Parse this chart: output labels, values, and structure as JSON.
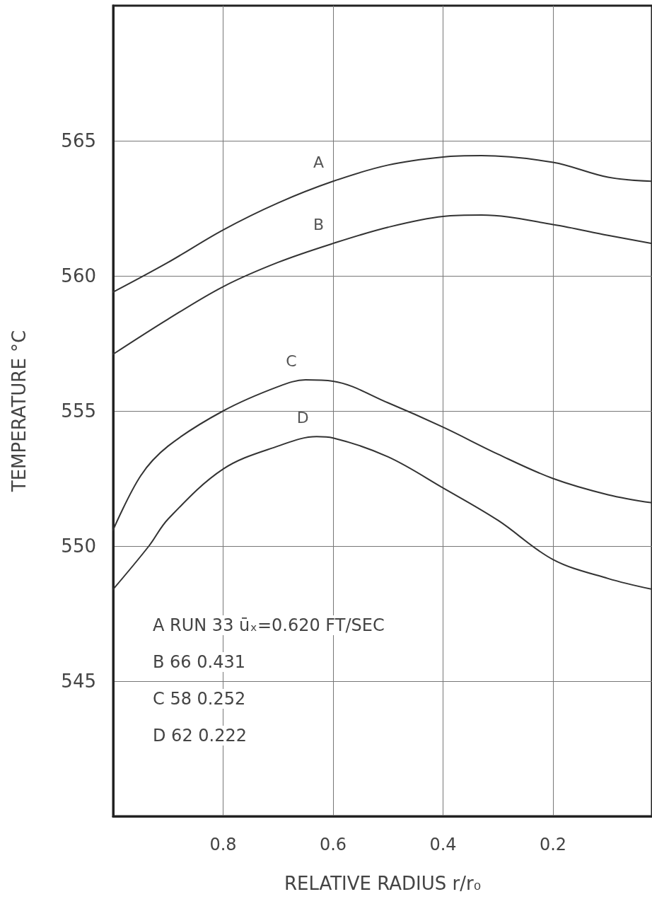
{
  "chart_data": {
    "type": "line",
    "xlabel": "RELATIVE RADIUS r/r₀",
    "ylabel": "TEMPERATURE °C",
    "xlim": [
      1,
      0.02
    ],
    "xticks": [
      0.8,
      0.6,
      0.4,
      0.2
    ],
    "ylim": [
      540,
      570
    ],
    "yticks": [
      545,
      550,
      555,
      560,
      565
    ],
    "grid": true,
    "marker": "none",
    "line_style": "solid",
    "legend": false,
    "series": [
      {
        "name": "A",
        "color": "#333333",
        "x": [
          1,
          0.9,
          0.8,
          0.7,
          0.6,
          0.5,
          0.4,
          0.33,
          0.2,
          0.1,
          0.02
        ],
        "values": [
          559.4,
          560.5,
          561.7,
          562.7,
          563.5,
          564.1,
          564.4,
          564.45,
          564.2,
          563.65,
          563.5
        ]
      },
      {
        "name": "B",
        "color": "#333333",
        "x": [
          1,
          0.9,
          0.8,
          0.7,
          0.6,
          0.5,
          0.4,
          0.33,
          0.2,
          0.1,
          0.02
        ],
        "values": [
          557.1,
          558.4,
          559.6,
          560.5,
          561.2,
          561.8,
          562.2,
          562.25,
          561.9,
          561.5,
          561.2
        ]
      },
      {
        "name": "C",
        "color": "#333333",
        "x": [
          1,
          0.95,
          0.9,
          0.8,
          0.7,
          0.65,
          0.6,
          0.5,
          0.4,
          0.3,
          0.2,
          0.1,
          0.02
        ],
        "values": [
          550.6,
          552.6,
          553.7,
          555.0,
          555.9,
          556.15,
          556.1,
          555.3,
          554.4,
          553.4,
          552.5,
          551.9,
          551.6
        ]
      },
      {
        "name": "D",
        "color": "#333333",
        "x": [
          1,
          0.935,
          0.9,
          0.8,
          0.7,
          0.63,
          0.6,
          0.5,
          0.4,
          0.3,
          0.2,
          0.1,
          0.02
        ],
        "values": [
          548.4,
          550.0,
          551.0,
          552.85,
          553.7,
          554.05,
          554.0,
          553.3,
          552.15,
          550.95,
          549.5,
          548.8,
          548.4
        ]
      }
    ],
    "annotations": [
      "A RUN 33 ūₓ=0.620 FT/SEC",
      "B 66 0.431",
      "C 58 0.252",
      "D 62 0.222"
    ]
  }
}
